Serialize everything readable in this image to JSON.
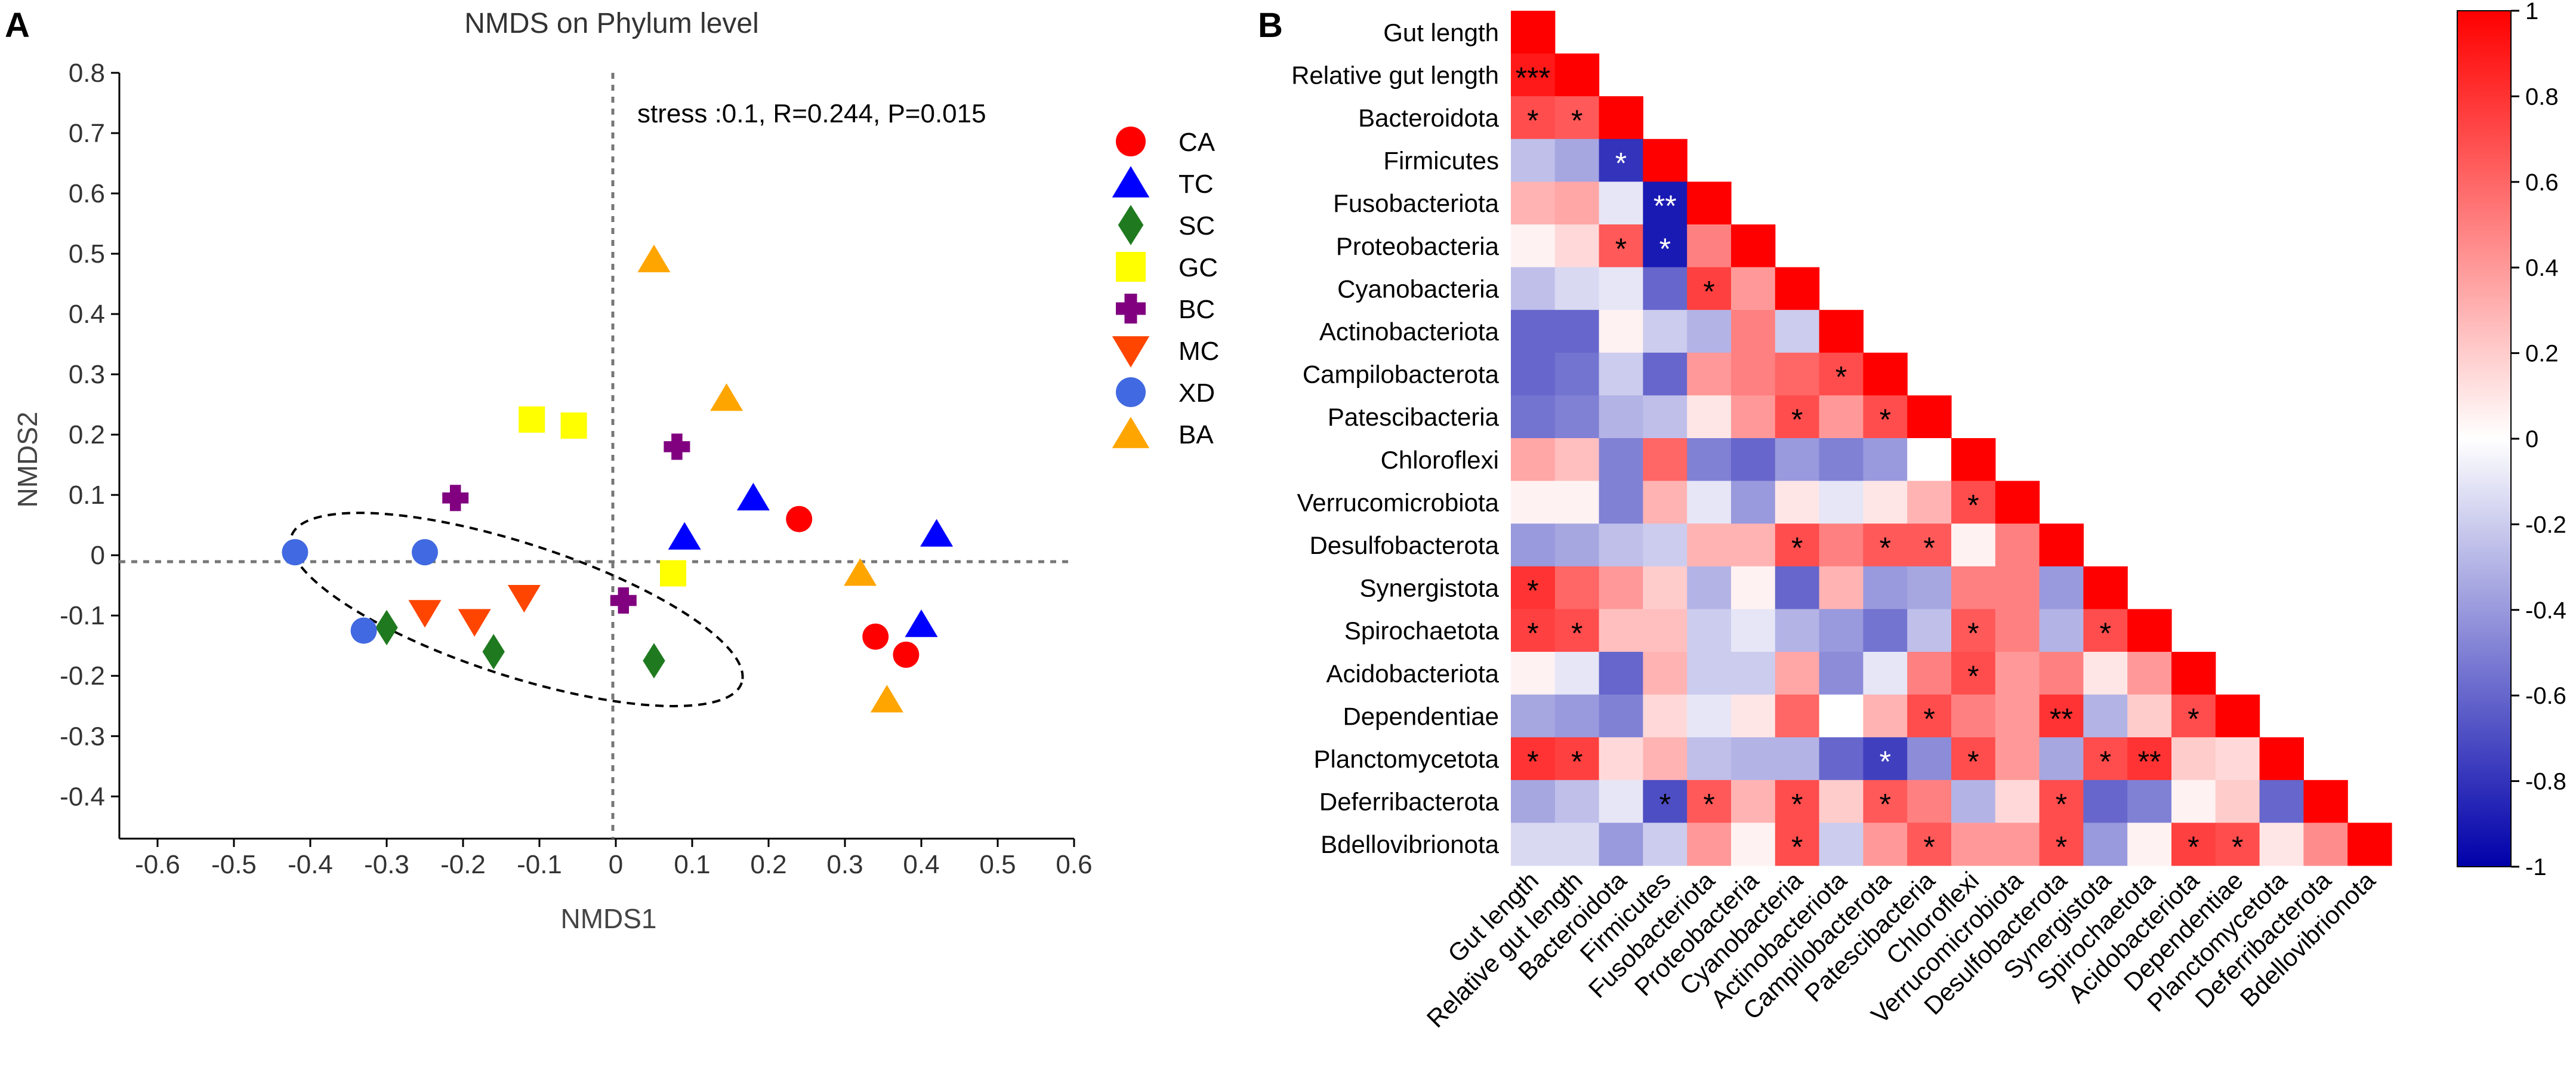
{
  "panel_a": {
    "letter": "A",
    "stress_text": "stress :0.1, R=0.244, P=0.015"
  },
  "panel_b": {
    "letter": "B",
    "star": "*"
  },
  "colors": {
    "CA": "#ff0000",
    "TC": "#0000ff",
    "SC": "#1f7a1f",
    "GC": "#ffff00",
    "BC": "#800080",
    "MC": "#ff4500",
    "XD": "#4169e1",
    "BA": "#ffa500",
    "positive": "#ff0000",
    "negative": "#0000aa",
    "neutral": "#ffffff"
  },
  "chart_data": [
    {
      "type": "scatter",
      "title": "NMDS on Phylum level",
      "xlabel": "NMDS1",
      "ylabel": "NMDS2",
      "xlim": [
        -0.65,
        0.6
      ],
      "ylim": [
        -0.47,
        0.8
      ],
      "xticks": [
        "-0.6",
        "-0.5",
        "-0.4",
        "-0.3",
        "-0.2",
        "-0.1",
        "0",
        "0.1",
        "0.2",
        "0.3",
        "0.4",
        "0.5",
        "0.6"
      ],
      "yticks": [
        "0.8",
        "0.7",
        "0.6",
        "0.5",
        "0.4",
        "0.3",
        "0.2",
        "0.1",
        "0",
        "-0.1",
        "-0.2",
        "-0.3",
        "-0.4"
      ],
      "legend_position": "right",
      "series": [
        {
          "name": "CA",
          "marker": "circle",
          "points": [
            [
              0.24,
              0.06
            ],
            [
              0.34,
              -0.135
            ],
            [
              0.38,
              -0.165
            ]
          ]
        },
        {
          "name": "TC",
          "marker": "triangle-up",
          "points": [
            [
              0.18,
              0.095
            ],
            [
              0.09,
              0.03
            ],
            [
              0.42,
              0.035
            ],
            [
              0.4,
              -0.115
            ]
          ]
        },
        {
          "name": "SC",
          "marker": "diamond",
          "points": [
            [
              -0.3,
              -0.12
            ],
            [
              -0.16,
              -0.16
            ],
            [
              0.05,
              -0.175
            ]
          ]
        },
        {
          "name": "GC",
          "marker": "square",
          "points": [
            [
              -0.11,
              0.225
            ],
            [
              -0.055,
              0.215
            ],
            [
              0.075,
              -0.03
            ]
          ]
        },
        {
          "name": "BC",
          "marker": "plus",
          "points": [
            [
              -0.21,
              0.095
            ],
            [
              0.08,
              0.18
            ],
            [
              0.01,
              -0.075
            ]
          ]
        },
        {
          "name": "MC",
          "marker": "triangle-down",
          "points": [
            [
              -0.25,
              -0.095
            ],
            [
              -0.185,
              -0.11
            ],
            [
              -0.12,
              -0.07
            ]
          ]
        },
        {
          "name": "XD",
          "marker": "circle",
          "points": [
            [
              -0.42,
              0.005
            ],
            [
              -0.25,
              0.005
            ],
            [
              -0.33,
              -0.125
            ]
          ]
        },
        {
          "name": "BA",
          "marker": "triangle-up",
          "points": [
            [
              0.05,
              0.49
            ],
            [
              0.145,
              0.26
            ],
            [
              0.32,
              -0.03
            ],
            [
              0.355,
              -0.24
            ]
          ]
        }
      ],
      "ellipse": {
        "center": [
          -0.13,
          -0.09
        ],
        "rx": 0.31,
        "ry": 0.11,
        "angle_deg": -18,
        "style": "dashed"
      }
    },
    {
      "type": "heatmap",
      "shape": "lower-triangle",
      "labels": [
        "Gut length",
        "Relative gut length",
        "Bacteroidota",
        "Firmicutes",
        "Fusobacteriota",
        "Proteobacteria",
        "Cyanobacteria",
        "Actinobacteriota",
        "Campilobacterota",
        "Patescibacteria",
        "Chloroflexi",
        "Verrucomicrobiota",
        "Desulfobacterota",
        "Synergistota",
        "Spirochaetota",
        "Acidobacteriota",
        "Dependentiae",
        "Planctomycetota",
        "Deferribacterota",
        "Bdellovibrionota"
      ],
      "values": [
        [
          1
        ],
        [
          0.9,
          1
        ],
        [
          0.7,
          0.65,
          1
        ],
        [
          -0.25,
          -0.35,
          -0.8,
          1
        ],
        [
          0.3,
          0.35,
          -0.1,
          -0.9,
          1
        ],
        [
          0.05,
          0.15,
          0.65,
          -0.9,
          0.5,
          1
        ],
        [
          -0.25,
          -0.15,
          -0.1,
          -0.6,
          0.75,
          0.4,
          1
        ],
        [
          -0.6,
          -0.6,
          0.05,
          -0.2,
          -0.3,
          0.5,
          -0.2,
          1
        ],
        [
          -0.6,
          -0.55,
          -0.2,
          -0.6,
          0.4,
          0.5,
          0.6,
          0.7,
          1
        ],
        [
          -0.55,
          -0.5,
          -0.3,
          -0.25,
          0.1,
          0.4,
          0.7,
          0.4,
          0.7,
          1
        ],
        [
          0.35,
          0.25,
          -0.5,
          0.6,
          -0.5,
          -0.6,
          -0.4,
          -0.5,
          -0.4,
          0.0,
          1
        ],
        [
          0.05,
          0.05,
          -0.5,
          0.3,
          -0.1,
          -0.4,
          0.1,
          -0.1,
          0.1,
          0.3,
          0.7,
          1
        ],
        [
          -0.4,
          -0.35,
          -0.25,
          -0.2,
          0.3,
          0.3,
          0.7,
          0.5,
          0.65,
          0.65,
          0.05,
          0.5,
          1
        ],
        [
          0.8,
          0.6,
          0.4,
          0.2,
          -0.3,
          0.05,
          -0.6,
          0.3,
          -0.4,
          -0.35,
          0.5,
          0.5,
          -0.4,
          1
        ],
        [
          0.75,
          0.7,
          0.25,
          0.25,
          -0.2,
          -0.1,
          -0.3,
          -0.4,
          -0.55,
          -0.25,
          0.65,
          0.5,
          -0.3,
          0.7,
          1
        ],
        [
          0.05,
          -0.1,
          -0.6,
          0.3,
          -0.2,
          -0.2,
          0.35,
          -0.45,
          -0.1,
          0.5,
          0.7,
          0.4,
          0.5,
          0.1,
          0.4,
          1
        ],
        [
          -0.35,
          -0.4,
          -0.5,
          0.15,
          -0.1,
          0.1,
          0.6,
          0.0,
          0.3,
          0.7,
          0.5,
          0.4,
          0.8,
          -0.3,
          0.2,
          0.7,
          1
        ],
        [
          0.8,
          0.75,
          0.15,
          0.3,
          -0.25,
          -0.3,
          -0.3,
          -0.6,
          -0.75,
          -0.45,
          0.7,
          0.4,
          -0.35,
          0.7,
          0.8,
          0.2,
          0.15,
          1
        ],
        [
          -0.35,
          -0.25,
          -0.1,
          -0.7,
          0.65,
          0.3,
          0.7,
          0.2,
          0.65,
          0.5,
          -0.3,
          0.15,
          0.7,
          -0.6,
          -0.5,
          0.05,
          0.2,
          -0.6,
          1
        ],
        [
          -0.15,
          -0.15,
          -0.4,
          -0.2,
          0.4,
          0.05,
          0.7,
          -0.2,
          0.4,
          0.65,
          0.4,
          0.4,
          0.7,
          -0.4,
          0.05,
          0.75,
          0.7,
          0.1,
          0.45,
          1
        ]
      ],
      "significance": [
        [
          1,
          0,
          "***"
        ],
        [
          2,
          0,
          "*"
        ],
        [
          2,
          1,
          "*"
        ],
        [
          3,
          2,
          "*"
        ],
        [
          4,
          3,
          "**"
        ],
        [
          5,
          2,
          "*"
        ],
        [
          5,
          3,
          "*"
        ],
        [
          6,
          4,
          "*"
        ],
        [
          8,
          7,
          "*"
        ],
        [
          9,
          6,
          "*"
        ],
        [
          9,
          8,
          "*"
        ],
        [
          11,
          10,
          "*"
        ],
        [
          12,
          6,
          "*"
        ],
        [
          12,
          8,
          "*"
        ],
        [
          12,
          9,
          "*"
        ],
        [
          13,
          0,
          "*"
        ],
        [
          14,
          0,
          "*"
        ],
        [
          14,
          1,
          "*"
        ],
        [
          14,
          10,
          "*"
        ],
        [
          14,
          13,
          "*"
        ],
        [
          15,
          10,
          "*"
        ],
        [
          16,
          9,
          "*"
        ],
        [
          16,
          12,
          "**"
        ],
        [
          16,
          15,
          "*"
        ],
        [
          17,
          0,
          "*"
        ],
        [
          17,
          1,
          "*"
        ],
        [
          17,
          8,
          "*"
        ],
        [
          17,
          10,
          "*"
        ],
        [
          17,
          13,
          "*"
        ],
        [
          17,
          14,
          "**"
        ],
        [
          18,
          3,
          "*"
        ],
        [
          18,
          4,
          "*"
        ],
        [
          18,
          6,
          "*"
        ],
        [
          18,
          8,
          "*"
        ],
        [
          18,
          12,
          "*"
        ],
        [
          19,
          6,
          "*"
        ],
        [
          19,
          9,
          "*"
        ],
        [
          19,
          12,
          "*"
        ],
        [
          19,
          15,
          "*"
        ],
        [
          19,
          16,
          "*"
        ]
      ],
      "colorbar": {
        "range": [
          -1,
          1
        ],
        "ticks": [
          "1",
          "0.8",
          "0.6",
          "0.4",
          "0.2",
          "0",
          "-0.2",
          "-0.4",
          "-0.6",
          "-0.8",
          "-1"
        ]
      }
    }
  ]
}
